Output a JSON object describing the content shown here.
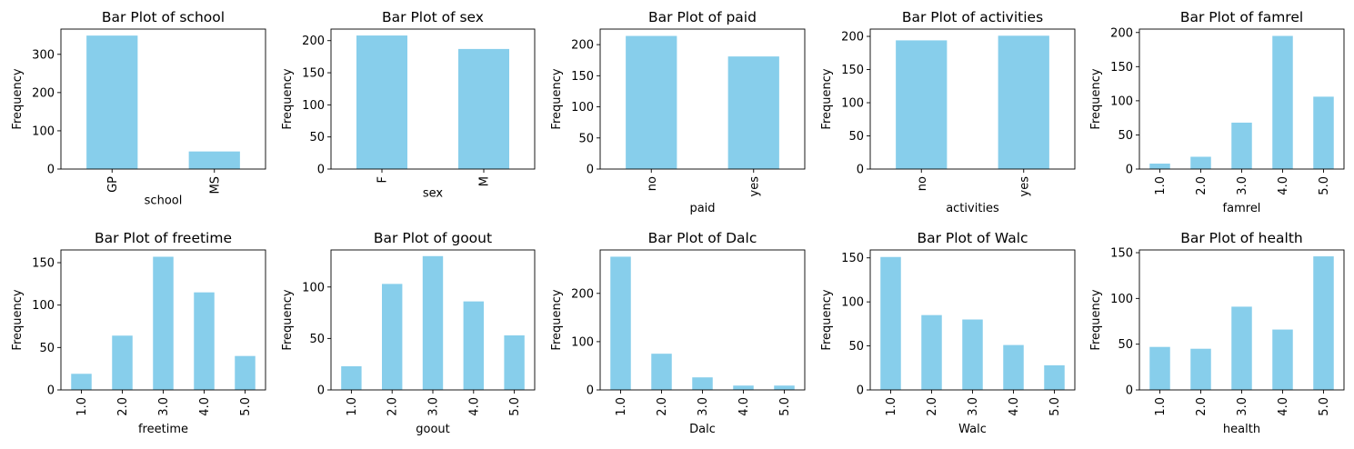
{
  "chart_data": [
    {
      "type": "bar",
      "title": "Bar Plot of school",
      "xlabel": "school",
      "ylabel": "Frequency",
      "categories": [
        "GP",
        "MS"
      ],
      "values": [
        349,
        46
      ],
      "ylim": [
        0,
        366
      ],
      "yticks": [
        0,
        100,
        200,
        300
      ]
    },
    {
      "type": "bar",
      "title": "Bar Plot of sex",
      "xlabel": "sex",
      "ylabel": "Frequency",
      "categories": [
        "F",
        "M"
      ],
      "values": [
        208,
        187
      ],
      "ylim": [
        0,
        218
      ],
      "yticks": [
        0,
        50,
        100,
        150,
        200
      ]
    },
    {
      "type": "bar",
      "title": "Bar Plot of paid",
      "xlabel": "paid",
      "ylabel": "Frequency",
      "categories": [
        "no",
        "yes"
      ],
      "values": [
        214,
        181
      ],
      "ylim": [
        0,
        225
      ],
      "yticks": [
        0,
        50,
        100,
        150,
        200
      ]
    },
    {
      "type": "bar",
      "title": "Bar Plot of activities",
      "xlabel": "activities",
      "ylabel": "Frequency",
      "categories": [
        "no",
        "yes"
      ],
      "values": [
        194,
        201
      ],
      "ylim": [
        0,
        211
      ],
      "yticks": [
        0,
        50,
        100,
        150,
        200
      ]
    },
    {
      "type": "bar",
      "title": "Bar Plot of famrel",
      "xlabel": "famrel",
      "ylabel": "Frequency",
      "categories": [
        "1.0",
        "2.0",
        "3.0",
        "4.0",
        "5.0"
      ],
      "values": [
        8,
        18,
        68,
        195,
        106
      ],
      "ylim": [
        0,
        205
      ],
      "yticks": [
        0,
        50,
        100,
        150,
        200
      ]
    },
    {
      "type": "bar",
      "title": "Bar Plot of freetime",
      "xlabel": "freetime",
      "ylabel": "Frequency",
      "categories": [
        "1.0",
        "2.0",
        "3.0",
        "4.0",
        "5.0"
      ],
      "values": [
        19,
        64,
        157,
        115,
        40
      ],
      "ylim": [
        0,
        165
      ],
      "yticks": [
        0,
        50,
        100,
        150
      ]
    },
    {
      "type": "bar",
      "title": "Bar Plot of goout",
      "xlabel": "goout",
      "ylabel": "Frequency",
      "categories": [
        "1.0",
        "2.0",
        "3.0",
        "4.0",
        "5.0"
      ],
      "values": [
        23,
        103,
        130,
        86,
        53
      ],
      "ylim": [
        0,
        136
      ],
      "yticks": [
        0,
        50,
        100
      ]
    },
    {
      "type": "bar",
      "title": "Bar Plot of Dalc",
      "xlabel": "Dalc",
      "ylabel": "Frequency",
      "categories": [
        "1.0",
        "2.0",
        "3.0",
        "4.0",
        "5.0"
      ],
      "values": [
        276,
        75,
        26,
        9,
        9
      ],
      "ylim": [
        0,
        290
      ],
      "yticks": [
        0,
        100,
        200
      ]
    },
    {
      "type": "bar",
      "title": "Bar Plot of Walc",
      "xlabel": "Walc",
      "ylabel": "Frequency",
      "categories": [
        "1.0",
        "2.0",
        "3.0",
        "4.0",
        "5.0"
      ],
      "values": [
        151,
        85,
        80,
        51,
        28
      ],
      "ylim": [
        0,
        159
      ],
      "yticks": [
        0,
        50,
        100,
        150
      ]
    },
    {
      "type": "bar",
      "title": "Bar Plot of health",
      "xlabel": "health",
      "ylabel": "Frequency",
      "categories": [
        "1.0",
        "2.0",
        "3.0",
        "4.0",
        "5.0"
      ],
      "values": [
        47,
        45,
        91,
        66,
        146
      ],
      "ylim": [
        0,
        153
      ],
      "yticks": [
        0,
        50,
        100,
        150
      ]
    }
  ],
  "colors": {
    "bar": "#87ceeb",
    "axis": "#000000",
    "background": "#ffffff"
  }
}
